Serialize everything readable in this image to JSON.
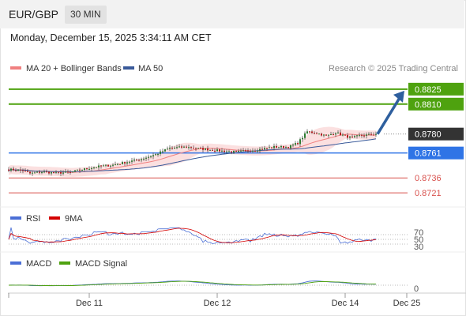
{
  "header": {
    "symbol": "EUR/GBP",
    "timeframe": "30 MIN"
  },
  "timestamp": "Monday, December 15, 2025 3:34:11 AM CET",
  "legend": {
    "ma20": "MA 20 + Bollinger Bands",
    "ma50": "MA 50",
    "credit": "Research © 2025 Trading Central"
  },
  "colors": {
    "ma20": "#f08080",
    "ma50": "#3a5a9a",
    "target": "#4ea20f",
    "pivot": "#2f74e6",
    "support": "#d9534f",
    "last": "#333333",
    "rsi": "#4b6fd6",
    "rsi_ma": "#d40000",
    "macd": "#4b6fd6",
    "macd_signal": "#4ea20f",
    "arrow": "#2e5f9e"
  },
  "price_levels": [
    {
      "value": "0.8825",
      "kind": "target"
    },
    {
      "value": "0.8810",
      "kind": "target"
    },
    {
      "value": "0.8780",
      "kind": "last"
    },
    {
      "value": "0.8761",
      "kind": "pivot"
    },
    {
      "value": "0.8736",
      "kind": "support"
    },
    {
      "value": "0.8721",
      "kind": "support"
    }
  ],
  "rsi_panel": {
    "label": "RSI",
    "ma_label": "9MA",
    "levels": [
      "70",
      "50",
      "30"
    ]
  },
  "macd_panel": {
    "label": "MACD",
    "signal_label": "MACD Signal",
    "zero_label": "0"
  },
  "x_axis": {
    "ticks": [
      "Dec 11",
      "Dec 12",
      "Dec 14",
      "Dec 25"
    ]
  },
  "chart_data": {
    "type": "candlestick",
    "instrument": "EUR/GBP",
    "timeframe": "30 MIN",
    "ylim": [
      0.8714,
      0.8832
    ],
    "close_path": [
      {
        "bar": 0,
        "close": 0.87445
      },
      {
        "bar": 6,
        "close": 0.87435
      },
      {
        "bar": 9,
        "close": 0.87405
      },
      {
        "bar": 14,
        "close": 0.8742
      },
      {
        "bar": 20,
        "close": 0.8741
      },
      {
        "bar": 26,
        "close": 0.87415
      },
      {
        "bar": 30,
        "close": 0.8744
      },
      {
        "bar": 38,
        "close": 0.87475
      },
      {
        "bar": 44,
        "close": 0.8749
      },
      {
        "bar": 50,
        "close": 0.8752
      },
      {
        "bar": 56,
        "close": 0.8755
      },
      {
        "bar": 62,
        "close": 0.87595
      },
      {
        "bar": 68,
        "close": 0.8766
      },
      {
        "bar": 75,
        "close": 0.8767
      },
      {
        "bar": 82,
        "close": 0.8765
      },
      {
        "bar": 90,
        "close": 0.8763
      },
      {
        "bar": 96,
        "close": 0.8762
      },
      {
        "bar": 104,
        "close": 0.8764
      },
      {
        "bar": 112,
        "close": 0.8767
      },
      {
        "bar": 118,
        "close": 0.8767
      },
      {
        "bar": 122,
        "close": 0.8771
      },
      {
        "bar": 126,
        "close": 0.87825
      },
      {
        "bar": 130,
        "close": 0.8781
      },
      {
        "bar": 134,
        "close": 0.8778
      },
      {
        "bar": 138,
        "close": 0.87815
      },
      {
        "bar": 142,
        "close": 0.8778
      },
      {
        "bar": 145,
        "close": 0.8776
      },
      {
        "bar": 148,
        "close": 0.87785
      },
      {
        "bar": 151,
        "close": 0.8779
      },
      {
        "bar": 155,
        "close": 0.878
      }
    ],
    "total_bars": 156,
    "forecast": {
      "from": 0.878,
      "to": 0.8825
    },
    "levels": [
      0.8825,
      0.881,
      0.878,
      0.8761,
      0.8736,
      0.8721
    ],
    "rsi": {
      "ylim": [
        0,
        100
      ],
      "levels": [
        70,
        50,
        30
      ]
    },
    "x_ticks": [
      {
        "label": "Dec 11",
        "bar": 34
      },
      {
        "label": "Dec 12",
        "bar": 88
      },
      {
        "label": "Dec 14",
        "bar": 142
      },
      {
        "label": "Dec 25",
        "bar": 168
      }
    ]
  }
}
